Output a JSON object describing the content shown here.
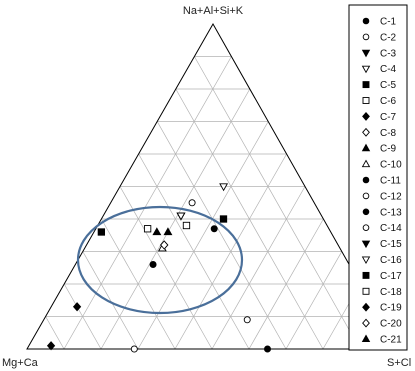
{
  "chart_data": {
    "type": "scatter",
    "subtype": "ternary",
    "vertex_labels": {
      "top": "Na+Al+Si+K",
      "left": "Mg+Ca",
      "right": "S+Cl"
    },
    "grid": true,
    "grid_step": 0.1,
    "legend_position": "right",
    "highlight": {
      "shape": "ellipse",
      "color": "#4a6f9a"
    },
    "series": [
      {
        "name": "C-1",
        "marker": "circle-filled",
        "top": 0.37,
        "right": 0.32
      },
      {
        "name": "C-2",
        "marker": "circle-open",
        "top": 0.45,
        "right": 0.22
      },
      {
        "name": "C-3",
        "marker": "tri-down-filled",
        "top": 0.41,
        "right": 0.21
      },
      {
        "name": "C-4",
        "marker": "tri-down-open",
        "top": 0.5,
        "right": 0.28
      },
      {
        "name": "C-5",
        "marker": "square-filled",
        "top": 0.4,
        "right": 0.33
      },
      {
        "name": "C-6",
        "marker": "square-open",
        "top": 0.38,
        "right": 0.24
      },
      {
        "name": "C-7",
        "marker": "diamond-filled",
        "top": 0.13,
        "right": 0.07
      },
      {
        "name": "C-8",
        "marker": "diamond-open",
        "top": 0.32,
        "right": 0.21
      },
      {
        "name": "C-9",
        "marker": "tri-up-filled",
        "top": 0.36,
        "right": 0.2
      },
      {
        "name": "C-10",
        "marker": "tri-up-open",
        "top": 0.31,
        "right": 0.21
      },
      {
        "name": "C-11",
        "marker": "circle-filled",
        "top": 0.26,
        "right": 0.21
      },
      {
        "name": "C-12",
        "marker": "circle-open",
        "top": 0.09,
        "right": 0.55
      },
      {
        "name": "C-13",
        "marker": "circle-filled",
        "top": 0.0,
        "right": 0.65
      },
      {
        "name": "C-14",
        "marker": "circle-open",
        "top": 0.0,
        "right": 0.29
      },
      {
        "name": "C-15",
        "marker": "tri-down-filled",
        "top": 0.41,
        "right": 0.21
      },
      {
        "name": "C-16",
        "marker": "tri-down-open",
        "top": 0.41,
        "right": 0.21
      },
      {
        "name": "C-17",
        "marker": "square-filled",
        "top": 0.36,
        "right": 0.02
      },
      {
        "name": "C-18",
        "marker": "square-open",
        "top": 0.37,
        "right": 0.14
      },
      {
        "name": "C-19",
        "marker": "diamond-filled",
        "top": 0.01,
        "right": 0.06
      },
      {
        "name": "C-20",
        "marker": "diamond-open",
        "top": 0.32,
        "right": 0.21
      },
      {
        "name": "C-21",
        "marker": "tri-up-filled",
        "top": 0.36,
        "right": 0.17
      }
    ]
  }
}
